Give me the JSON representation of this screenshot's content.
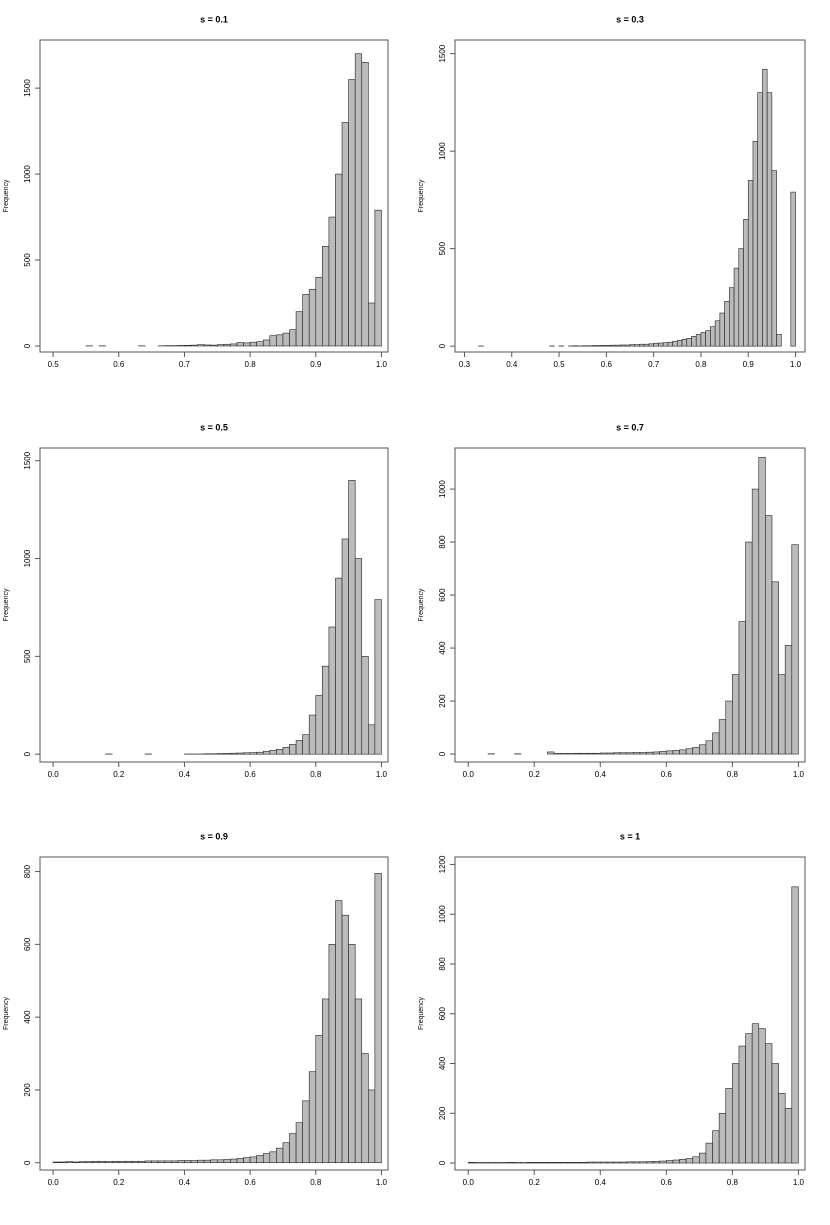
{
  "chart_data": [
    {
      "type": "histogram",
      "title": "s = 0.1",
      "ylabel": "Frequency",
      "color": "#bbbbbb",
      "bins": [
        0.5,
        0.51,
        0.52,
        0.53,
        0.54,
        0.55,
        0.56,
        0.57,
        0.58,
        0.59,
        0.6,
        0.61,
        0.62,
        0.63,
        0.64,
        0.65,
        0.66,
        0.67,
        0.68,
        0.69,
        0.7,
        0.71,
        0.72,
        0.73,
        0.74,
        0.75,
        0.76,
        0.77,
        0.78,
        0.79,
        0.8,
        0.81,
        0.82,
        0.83,
        0.84,
        0.85,
        0.86,
        0.87,
        0.88,
        0.89,
        0.9,
        0.91,
        0.92,
        0.93,
        0.94,
        0.95,
        0.96,
        0.97,
        0.98,
        0.99,
        1.0
      ],
      "counts": [
        0,
        0,
        0,
        0,
        0,
        1,
        0,
        1,
        0,
        0,
        0,
        0,
        0,
        1,
        0,
        0,
        1,
        2,
        2,
        3,
        4,
        5,
        8,
        6,
        5,
        8,
        10,
        12,
        20,
        18,
        22,
        25,
        35,
        60,
        65,
        75,
        95,
        200,
        300,
        330,
        400,
        580,
        750,
        1000,
        1300,
        1550,
        1700,
        1650,
        250,
        790
      ],
      "xlim": [
        0.48,
        1.01
      ],
      "ylim": [
        -35,
        1780
      ],
      "xticks": [
        0.5,
        0.6,
        0.7,
        0.8,
        0.9,
        {
          "value": 1,
          "label": "1.0"
        }
      ],
      "yticks": [
        0,
        500,
        1000,
        1500
      ]
    },
    {
      "type": "histogram",
      "title": "s = 0.3",
      "ylabel": "Frequency",
      "color": "#bbbbbb",
      "bins": [
        0.3,
        0.31,
        0.32,
        0.33,
        0.34,
        0.35,
        0.36,
        0.37,
        0.38,
        0.39,
        0.4,
        0.41,
        0.42,
        0.43,
        0.44,
        0.45,
        0.46,
        0.47,
        0.48,
        0.49,
        0.5,
        0.51,
        0.52,
        0.53,
        0.54,
        0.55,
        0.56,
        0.57,
        0.58,
        0.59,
        0.6,
        0.61,
        0.62,
        0.63,
        0.64,
        0.65,
        0.66,
        0.67,
        0.68,
        0.69,
        0.7,
        0.71,
        0.72,
        0.73,
        0.74,
        0.75,
        0.76,
        0.77,
        0.78,
        0.79,
        0.8,
        0.81,
        0.82,
        0.83,
        0.84,
        0.85,
        0.86,
        0.87,
        0.88,
        0.89,
        0.9,
        0.91,
        0.92,
        0.93,
        0.94,
        0.95,
        0.96,
        0.97,
        0.98,
        0.99,
        1.0
      ],
      "counts": [
        0,
        0,
        0,
        1,
        0,
        0,
        0,
        0,
        0,
        0,
        0,
        0,
        0,
        0,
        0,
        0,
        0,
        0,
        1,
        0,
        1,
        0,
        1,
        2,
        1,
        2,
        2,
        3,
        3,
        4,
        4,
        5,
        5,
        6,
        6,
        8,
        8,
        10,
        10,
        12,
        15,
        16,
        18,
        20,
        25,
        30,
        35,
        40,
        50,
        60,
        70,
        80,
        100,
        130,
        170,
        230,
        300,
        400,
        500,
        650,
        850,
        1050,
        1300,
        1420,
        1300,
        900,
        60,
        0,
        0,
        790
      ],
      "xlim": [
        0.28,
        1.02
      ],
      "ylim": [
        -30,
        1570
      ],
      "xticks": [
        0.3,
        0.4,
        0.5,
        0.6,
        0.7,
        0.8,
        0.9,
        {
          "value": 1,
          "label": "1.0"
        }
      ],
      "yticks": [
        0,
        500,
        1000,
        1500
      ]
    },
    {
      "type": "histogram",
      "title": "s = 0.5",
      "ylabel": "Frequency",
      "color": "#bbbbbb",
      "bins": [
        0,
        0.02,
        0.04,
        0.06,
        0.08,
        0.1,
        0.12,
        0.14,
        0.16,
        0.18,
        0.2,
        0.22,
        0.24,
        0.26,
        0.28,
        0.3,
        0.32,
        0.34,
        0.36,
        0.38,
        0.4,
        0.42,
        0.44,
        0.46,
        0.48,
        0.5,
        0.52,
        0.54,
        0.56,
        0.58,
        0.6,
        0.62,
        0.64,
        0.66,
        0.68,
        0.7,
        0.72,
        0.74,
        0.76,
        0.78,
        0.8,
        0.82,
        0.84,
        0.86,
        0.88,
        0.9,
        0.92,
        0.94,
        0.96,
        0.98,
        1.0
      ],
      "counts": [
        0,
        0,
        0,
        0,
        0,
        0,
        0,
        0,
        1,
        0,
        0,
        0,
        0,
        0,
        1,
        0,
        0,
        0,
        0,
        0,
        1,
        1,
        1,
        2,
        2,
        3,
        4,
        5,
        6,
        7,
        8,
        10,
        15,
        20,
        25,
        35,
        50,
        70,
        100,
        200,
        300,
        450,
        650,
        900,
        1100,
        1400,
        1000,
        500,
        150,
        790
      ],
      "xlim": [
        -0.04,
        1.02
      ],
      "ylim": [
        -40,
        1565
      ],
      "xticks": [
        {
          "value": 0,
          "label": "0.0"
        },
        0.2,
        0.4,
        0.6,
        0.8,
        {
          "value": 1,
          "label": "1.0"
        }
      ],
      "yticks": [
        0,
        500,
        1000,
        1500
      ]
    },
    {
      "type": "histogram",
      "title": "s = 0.7",
      "ylabel": "Frequency",
      "color": "#bbbbbb",
      "bins": [
        0,
        0.02,
        0.04,
        0.06,
        0.08,
        0.1,
        0.12,
        0.14,
        0.16,
        0.18,
        0.2,
        0.22,
        0.24,
        0.26,
        0.28,
        0.3,
        0.32,
        0.34,
        0.36,
        0.38,
        0.4,
        0.42,
        0.44,
        0.46,
        0.48,
        0.5,
        0.52,
        0.54,
        0.56,
        0.58,
        0.6,
        0.62,
        0.64,
        0.66,
        0.68,
        0.7,
        0.72,
        0.74,
        0.76,
        0.78,
        0.8,
        0.82,
        0.84,
        0.86,
        0.88,
        0.9,
        0.92,
        0.94,
        0.96,
        0.98,
        1.0
      ],
      "counts": [
        0,
        0,
        0,
        1,
        0,
        0,
        0,
        1,
        0,
        0,
        0,
        0,
        8,
        2,
        2,
        2,
        3,
        3,
        3,
        3,
        4,
        4,
        5,
        5,
        5,
        6,
        6,
        7,
        8,
        10,
        12,
        14,
        16,
        20,
        25,
        35,
        50,
        80,
        130,
        200,
        300,
        500,
        800,
        1000,
        1120,
        900,
        650,
        300,
        410,
        790
      ],
      "xlim": [
        -0.04,
        1.02
      ],
      "ylim": [
        -30,
        1155
      ],
      "xticks": [
        {
          "value": 0,
          "label": "0.0"
        },
        0.2,
        0.4,
        0.6,
        0.8,
        {
          "value": 1,
          "label": "1.0"
        }
      ],
      "yticks": [
        0,
        200,
        400,
        600,
        800,
        1000
      ]
    },
    {
      "type": "histogram",
      "title": "s = 0.9",
      "ylabel": "Frequency",
      "color": "#bbbbbb",
      "bins": [
        0,
        0.02,
        0.04,
        0.06,
        0.08,
        0.1,
        0.12,
        0.14,
        0.16,
        0.18,
        0.2,
        0.22,
        0.24,
        0.26,
        0.28,
        0.3,
        0.32,
        0.34,
        0.36,
        0.38,
        0.4,
        0.42,
        0.44,
        0.46,
        0.48,
        0.5,
        0.52,
        0.54,
        0.56,
        0.58,
        0.6,
        0.62,
        0.64,
        0.66,
        0.68,
        0.7,
        0.72,
        0.74,
        0.76,
        0.78,
        0.8,
        0.82,
        0.84,
        0.86,
        0.88,
        0.9,
        0.92,
        0.94,
        0.96,
        0.98,
        1.0
      ],
      "counts": [
        2,
        2,
        3,
        2,
        3,
        3,
        4,
        4,
        3,
        4,
        4,
        4,
        4,
        4,
        5,
        5,
        5,
        5,
        5,
        6,
        6,
        6,
        7,
        7,
        8,
        8,
        9,
        10,
        12,
        14,
        16,
        20,
        25,
        30,
        40,
        55,
        80,
        110,
        170,
        250,
        350,
        450,
        600,
        720,
        680,
        600,
        450,
        300,
        200,
        795
      ],
      "xlim": [
        -0.04,
        1.02
      ],
      "ylim": [
        -20,
        840
      ],
      "xticks": [
        {
          "value": 0,
          "label": "0.0"
        },
        0.2,
        0.4,
        0.6,
        0.8,
        {
          "value": 1,
          "label": "1.0"
        }
      ],
      "yticks": [
        0,
        200,
        400,
        600,
        800
      ]
    },
    {
      "type": "histogram",
      "title": "s = 1",
      "ylabel": "Frequency",
      "color": "#bbbbbb",
      "bins": [
        0,
        0.02,
        0.04,
        0.06,
        0.08,
        0.1,
        0.12,
        0.14,
        0.16,
        0.18,
        0.2,
        0.22,
        0.24,
        0.26,
        0.28,
        0.3,
        0.32,
        0.34,
        0.36,
        0.38,
        0.4,
        0.42,
        0.44,
        0.46,
        0.48,
        0.5,
        0.52,
        0.54,
        0.56,
        0.58,
        0.6,
        0.62,
        0.64,
        0.66,
        0.68,
        0.7,
        0.72,
        0.74,
        0.76,
        0.78,
        0.8,
        0.82,
        0.84,
        0.86,
        0.88,
        0.9,
        0.92,
        0.94,
        0.96,
        0.98,
        1.0
      ],
      "counts": [
        3,
        2,
        2,
        2,
        2,
        2,
        3,
        2,
        2,
        3,
        3,
        3,
        3,
        3,
        3,
        3,
        3,
        3,
        4,
        4,
        4,
        4,
        4,
        4,
        5,
        5,
        5,
        6,
        7,
        8,
        10,
        12,
        15,
        18,
        25,
        40,
        80,
        130,
        200,
        300,
        400,
        470,
        520,
        560,
        540,
        480,
        400,
        280,
        220,
        1110
      ],
      "xlim": [
        -0.04,
        1.02
      ],
      "ylim": [
        -28,
        1230
      ],
      "xticks": [
        {
          "value": 0,
          "label": "0.0"
        },
        0.2,
        0.4,
        0.6,
        0.8,
        {
          "value": 1,
          "label": "1.0"
        }
      ],
      "yticks": [
        0,
        200,
        400,
        600,
        800,
        1000,
        1200
      ]
    }
  ]
}
